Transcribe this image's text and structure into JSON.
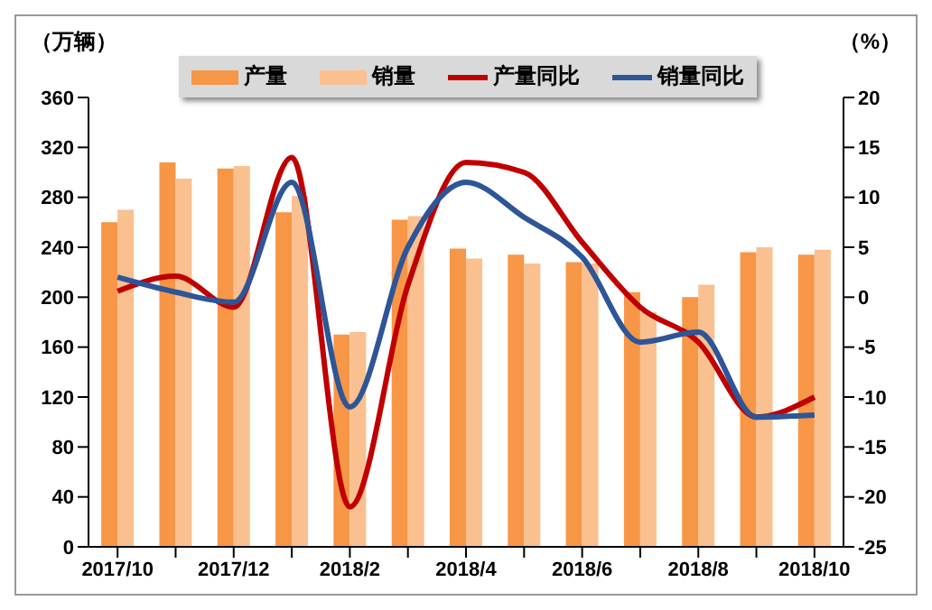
{
  "chart_data": {
    "type": "bar",
    "ylabel": "（万辆）",
    "y2label": "（%）",
    "categories": [
      "2017/10",
      null,
      "2017/12",
      null,
      "2018/2",
      null,
      "2018/4",
      null,
      "2018/6",
      null,
      "2018/8",
      null,
      "2018/10"
    ],
    "series": [
      {
        "name": "产量",
        "color": "#f79646",
        "values": [
          260,
          308,
          303,
          268,
          170,
          262,
          239,
          234,
          228,
          204,
          200,
          236,
          234
        ]
      },
      {
        "name": "销量",
        "color": "#fac090",
        "values": [
          270,
          295,
          305,
          281,
          172,
          265,
          231,
          227,
          227,
          188,
          210,
          240,
          238
        ]
      },
      {
        "name": "产量同比",
        "type": "line",
        "axis": "y2",
        "color": "#c00000",
        "values": [
          0.6,
          2.1,
          -1,
          14,
          -21,
          1.2,
          13.5,
          12.5,
          5.5,
          -1,
          -4.5,
          -12,
          -10
        ]
      },
      {
        "name": "销量同比",
        "type": "line",
        "axis": "y2",
        "color": "#2e5597",
        "values": [
          2,
          0.5,
          -0.5,
          11.5,
          -11,
          5,
          11.5,
          8,
          4,
          -4.5,
          -3.5,
          -12,
          -11.8
        ]
      }
    ],
    "ylim": [
      0,
      360
    ],
    "yticks": [
      0,
      40,
      80,
      120,
      160,
      200,
      240,
      280,
      320,
      360
    ],
    "y2lim": [
      -25,
      20
    ],
    "y2ticks": [
      -25,
      -20,
      -15,
      -10,
      -5,
      0,
      5,
      10,
      15,
      20
    ],
    "grid": false,
    "legend": "top",
    "marker": "none",
    "line_style": "solid"
  }
}
